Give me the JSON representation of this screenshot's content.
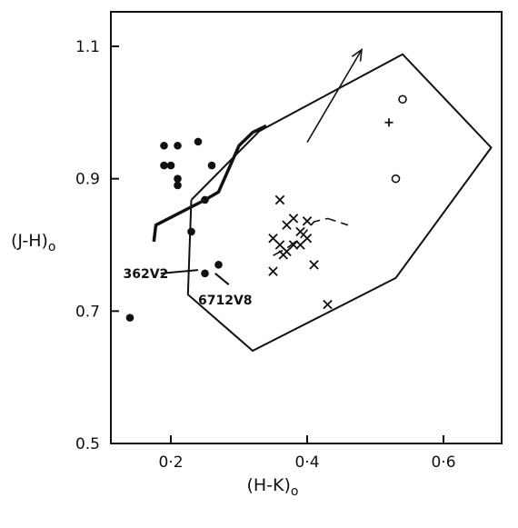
{
  "chart_data": {
    "type": "scatter",
    "title": "",
    "xlabel": "(H-K)",
    "xlabel_sub": "o",
    "ylabel": "(J-H)",
    "ylabel_sub": "o",
    "xlim": [
      0.1,
      0.7
    ],
    "ylim": [
      0.5,
      1.15
    ],
    "x_ticks": [
      {
        "value": 0.2,
        "label": "0·2"
      },
      {
        "value": 0.4,
        "label": "0·4"
      },
      {
        "value": 0.6,
        "label": "0·6"
      }
    ],
    "y_ticks": [
      {
        "value": 0.5,
        "label": "0.5"
      },
      {
        "value": 0.7,
        "label": "0.7"
      },
      {
        "value": 0.9,
        "label": "0.9"
      },
      {
        "value": 1.1,
        "label": "1.1"
      }
    ],
    "grid": false,
    "series": [
      {
        "marker": "filled-circle",
        "points": [
          [
            0.19,
            0.95
          ],
          [
            0.21,
            0.95
          ],
          [
            0.24,
            0.956
          ],
          [
            0.19,
            0.92
          ],
          [
            0.2,
            0.92
          ],
          [
            0.26,
            0.92
          ],
          [
            0.21,
            0.9
          ],
          [
            0.21,
            0.89
          ],
          [
            0.25,
            0.868
          ],
          [
            0.23,
            0.82
          ],
          [
            0.27,
            0.77
          ],
          [
            0.25,
            0.757
          ],
          [
            0.14,
            0.69
          ]
        ]
      },
      {
        "marker": "cross",
        "points": [
          [
            0.36,
            0.868
          ],
          [
            0.38,
            0.84
          ],
          [
            0.37,
            0.83
          ],
          [
            0.4,
            0.836
          ],
          [
            0.39,
            0.82
          ],
          [
            0.35,
            0.81
          ],
          [
            0.4,
            0.81
          ],
          [
            0.36,
            0.8
          ],
          [
            0.38,
            0.8
          ],
          [
            0.37,
            0.79
          ],
          [
            0.39,
            0.8
          ],
          [
            0.365,
            0.785
          ],
          [
            0.41,
            0.77
          ],
          [
            0.35,
            0.76
          ],
          [
            0.43,
            0.71
          ]
        ]
      },
      {
        "marker": "open-circle",
        "points": [
          [
            0.54,
            1.02
          ],
          [
            0.53,
            0.9
          ]
        ]
      },
      {
        "marker": "plus",
        "points": [
          [
            0.52,
            0.985
          ]
        ]
      }
    ],
    "main_sequence_curve": [
      [
        0.175,
        0.805
      ],
      [
        0.178,
        0.83
      ],
      [
        0.25,
        0.868
      ],
      [
        0.27,
        0.88
      ],
      [
        0.3,
        0.95
      ],
      [
        0.32,
        0.97
      ],
      [
        0.34,
        0.98
      ]
    ],
    "dashed_curve": [
      [
        0.35,
        0.784
      ],
      [
        0.37,
        0.795
      ],
      [
        0.39,
        0.81
      ],
      [
        0.41,
        0.835
      ],
      [
        0.43,
        0.84
      ],
      [
        0.46,
        0.83
      ]
    ],
    "reddening_arrow": {
      "from": [
        0.4,
        0.955
      ],
      "to": [
        0.48,
        1.095
      ]
    },
    "region_polygon": [
      [
        0.23,
        0.868
      ],
      [
        0.33,
        0.972
      ],
      [
        0.54,
        1.088
      ],
      [
        0.67,
        0.947
      ],
      [
        0.53,
        0.75
      ],
      [
        0.32,
        0.64
      ],
      [
        0.225,
        0.725
      ],
      [
        0.23,
        0.868
      ]
    ],
    "annotations": [
      {
        "text": "362V2",
        "anchor": [
          0.13,
          0.757
        ],
        "line_from": [
          0.185,
          0.757
        ],
        "line_to": [
          0.24,
          0.762
        ]
      },
      {
        "text": "6712V8",
        "anchor": [
          0.24,
          0.717
        ],
        "line_from": [
          0.265,
          0.757
        ],
        "line_to": [
          0.285,
          0.74
        ]
      }
    ]
  }
}
